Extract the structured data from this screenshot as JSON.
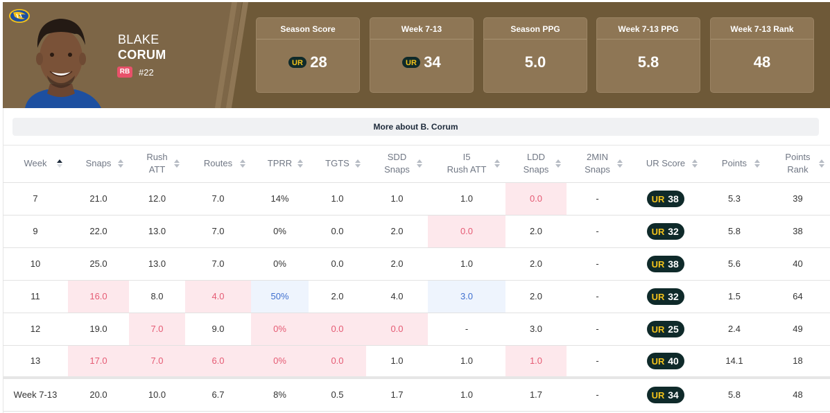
{
  "colors": {
    "header_bg": "#7d6647",
    "card_bg": "#8e7655",
    "bad_cell": "#fde8ec",
    "good_cell": "#eef4fd",
    "pill_bg": "#0f2a2a",
    "pill_accent": "#f2c21b",
    "position_badge": "#e8516a"
  },
  "player": {
    "first_name": "BLAKE",
    "last_name": "CORUM",
    "position": "RB",
    "jersey": "#22",
    "team_logo_icon": "rams-logo-icon",
    "photo": "player-headshot"
  },
  "stat_cards": [
    {
      "label": "Season Score",
      "value": "28",
      "icon": "ur-logo-icon"
    },
    {
      "label": "Week 7-13",
      "value": "34",
      "icon": "ur-logo-icon"
    },
    {
      "label": "Season PPG",
      "value": "5.0"
    },
    {
      "label": "Week 7-13 PPG",
      "value": "5.8"
    },
    {
      "label": "Week 7-13 Rank",
      "value": "48"
    }
  ],
  "more_link": "More about B. Corum",
  "table": {
    "columns": [
      {
        "line1": "Week",
        "line2": "",
        "sorted": "asc"
      },
      {
        "line1": "Snaps",
        "line2": ""
      },
      {
        "line1": "Rush",
        "line2": "ATT"
      },
      {
        "line1": "Routes",
        "line2": ""
      },
      {
        "line1": "TPRR",
        "line2": ""
      },
      {
        "line1": "TGTS",
        "line2": ""
      },
      {
        "line1": "SDD",
        "line2": "Snaps"
      },
      {
        "line1": "I5",
        "line2": "Rush ATT"
      },
      {
        "line1": "LDD",
        "line2": "Snaps"
      },
      {
        "line1": "2MIN",
        "line2": "Snaps"
      },
      {
        "line1": "UR Score",
        "line2": ""
      },
      {
        "line1": "Points",
        "line2": ""
      },
      {
        "line1": "Points",
        "line2": "Rank"
      }
    ],
    "rows": [
      {
        "cells": [
          "7",
          "21.0",
          "12.0",
          "7.0",
          "14%",
          "1.0",
          "1.0",
          "1.0",
          "0.0",
          "-",
          "38",
          "5.3",
          "39"
        ],
        "flags": [
          "",
          "",
          "",
          "",
          "",
          "",
          "",
          "",
          "bad",
          "",
          "",
          "",
          ""
        ]
      },
      {
        "cells": [
          "9",
          "22.0",
          "13.0",
          "7.0",
          "0%",
          "0.0",
          "2.0",
          "0.0",
          "2.0",
          "-",
          "32",
          "5.8",
          "38"
        ],
        "flags": [
          "",
          "",
          "",
          "",
          "",
          "",
          "",
          "bad",
          "",
          "",
          "",
          "",
          ""
        ]
      },
      {
        "cells": [
          "10",
          "25.0",
          "13.0",
          "7.0",
          "0%",
          "0.0",
          "2.0",
          "1.0",
          "2.0",
          "-",
          "38",
          "5.6",
          "40"
        ],
        "flags": [
          "",
          "",
          "",
          "",
          "",
          "",
          "",
          "",
          "",
          "",
          "",
          "",
          ""
        ]
      },
      {
        "cells": [
          "11",
          "16.0",
          "8.0",
          "4.0",
          "50%",
          "2.0",
          "4.0",
          "3.0",
          "2.0",
          "-",
          "32",
          "1.5",
          "64"
        ],
        "flags": [
          "",
          "bad",
          "",
          "bad",
          "good",
          "",
          "",
          "good",
          "",
          "",
          "",
          "",
          ""
        ]
      },
      {
        "cells": [
          "12",
          "19.0",
          "7.0",
          "9.0",
          "0%",
          "0.0",
          "0.0",
          "-",
          "3.0",
          "-",
          "25",
          "2.4",
          "49"
        ],
        "flags": [
          "",
          "",
          "bad",
          "",
          "bad",
          "bad",
          "bad",
          "",
          "",
          "",
          "",
          "",
          ""
        ]
      },
      {
        "cells": [
          "13",
          "17.0",
          "7.0",
          "6.0",
          "0%",
          "0.0",
          "1.0",
          "1.0",
          "1.0",
          "-",
          "40",
          "14.1",
          "18"
        ],
        "flags": [
          "",
          "bad",
          "bad",
          "bad",
          "bad",
          "bad",
          "",
          "",
          "bad",
          "",
          "",
          "",
          ""
        ]
      }
    ],
    "average_row": {
      "cells": [
        "Week 7-13",
        "20.0",
        "10.0",
        "6.7",
        "8%",
        "0.5",
        "1.7",
        "1.0",
        "1.7",
        "-",
        "34",
        "5.8",
        "48"
      ]
    }
  }
}
